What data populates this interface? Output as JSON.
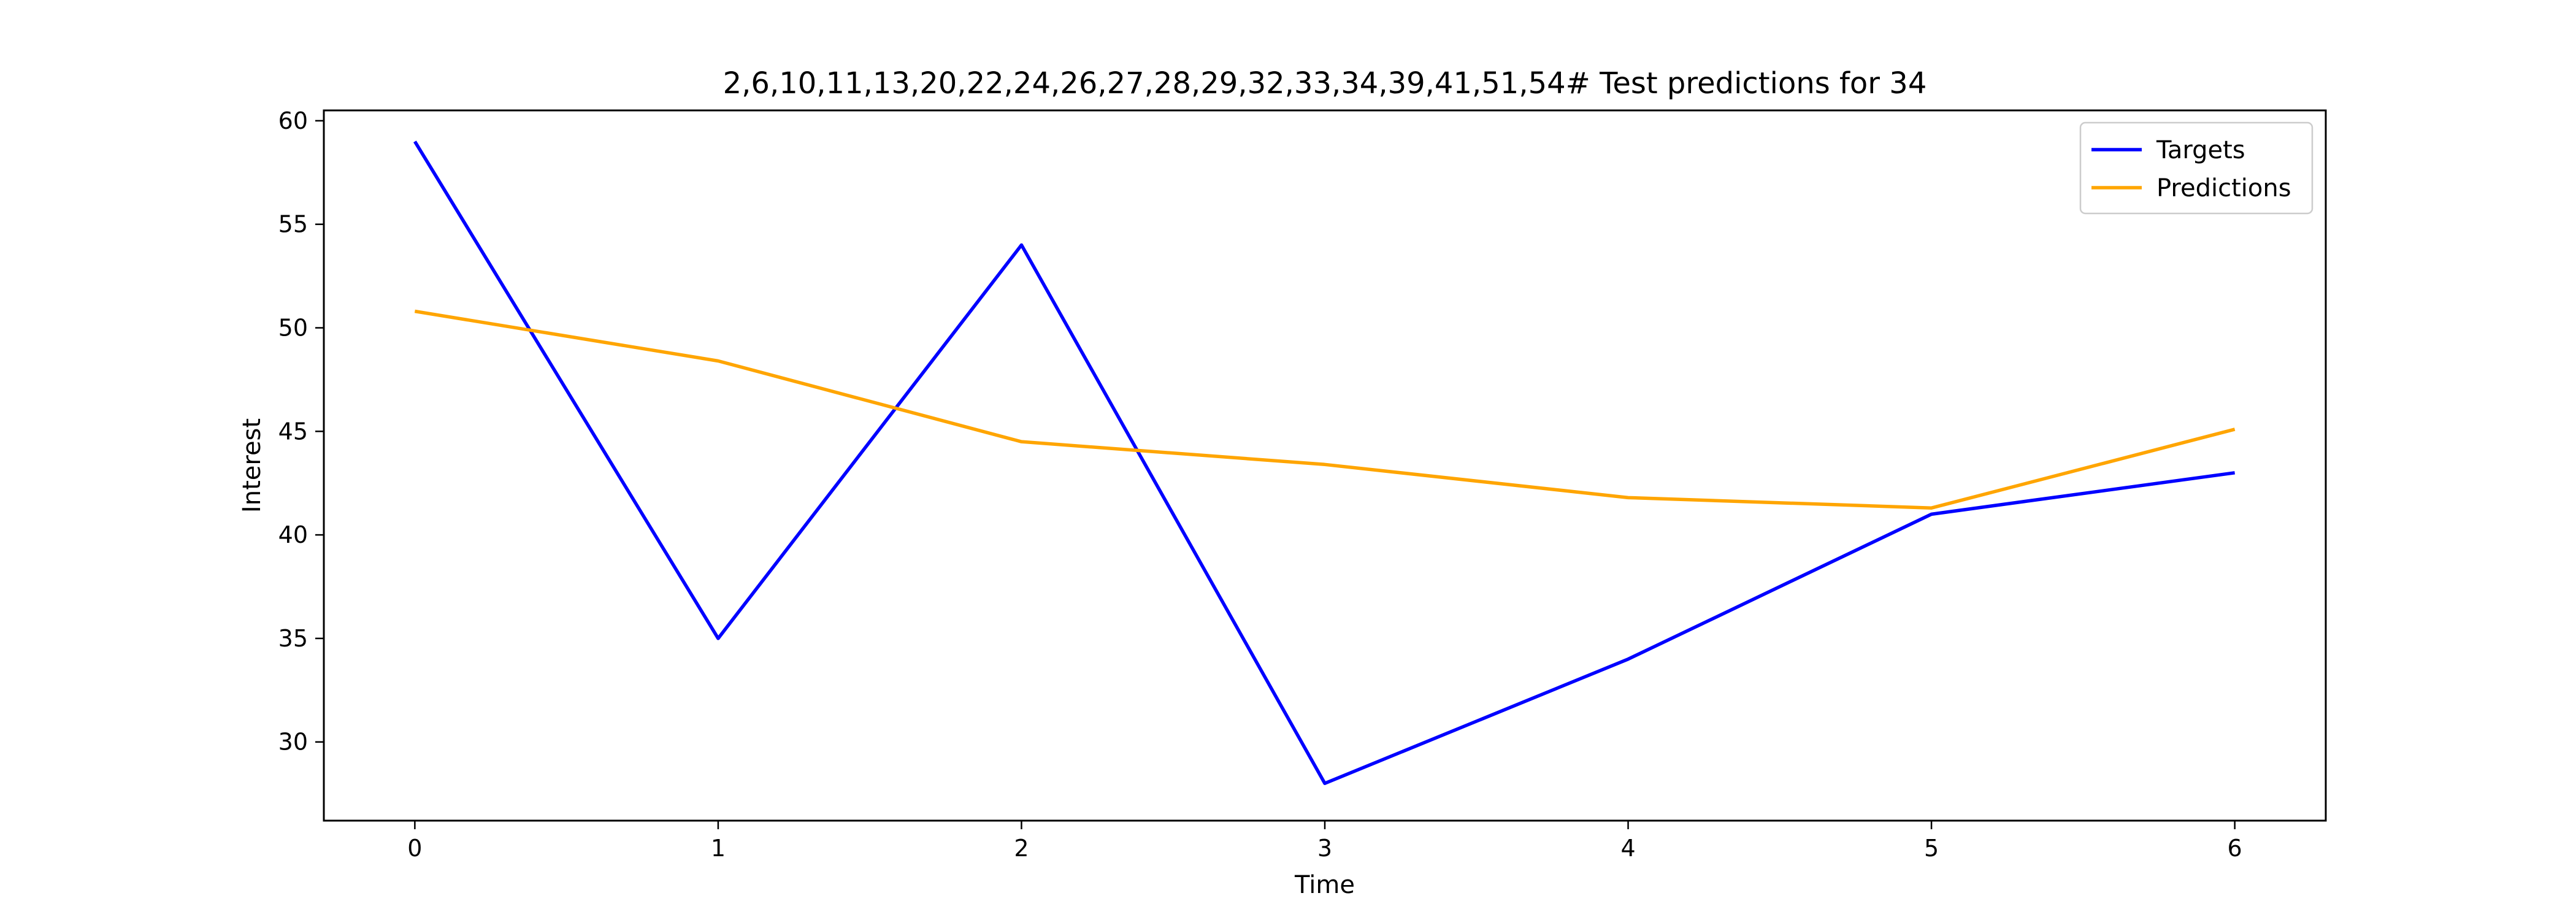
{
  "chart_data": {
    "type": "line",
    "title": "2,6,10,11,13,20,22,24,26,27,28,29,32,33,34,39,41,51,54# Test predictions for 34",
    "xlabel": "Time",
    "ylabel": "Interest",
    "x": [
      0,
      1,
      2,
      3,
      4,
      5,
      6
    ],
    "xticks": [
      "0",
      "1",
      "2",
      "3",
      "4",
      "5",
      "6"
    ],
    "yticks": [
      "30",
      "35",
      "40",
      "45",
      "50",
      "55",
      "60"
    ],
    "xlim": [
      -0.3,
      6.3
    ],
    "ylim": [
      26.2,
      60.5
    ],
    "grid": false,
    "legend_position": "top-right",
    "series": [
      {
        "name": "Targets",
        "color": "#0000ff",
        "values": [
          59.0,
          35.0,
          54.0,
          28.0,
          34.0,
          41.0,
          43.0
        ]
      },
      {
        "name": "Predictions",
        "color": "#ffa500",
        "values": [
          50.8,
          48.4,
          44.5,
          43.4,
          41.8,
          41.3,
          45.1
        ]
      }
    ]
  }
}
